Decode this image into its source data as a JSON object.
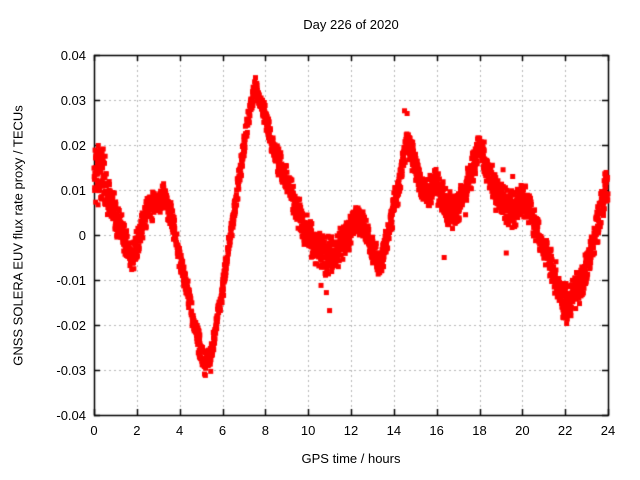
{
  "window": {
    "background": "#ffffff"
  },
  "chart_data": {
    "type": "scatter",
    "title": "Day 226 of 2020",
    "xlabel": "GPS time / hours",
    "ylabel": "GNSS SOLERA EUV flux rate proxy / TECUs",
    "xlim": [
      0,
      24
    ],
    "ylim": [
      -0.04,
      0.04
    ],
    "xtick_values": [
      0,
      2,
      4,
      6,
      8,
      10,
      12,
      14,
      16,
      18,
      20,
      22,
      24
    ],
    "xtick_labels": [
      "0",
      "2",
      "4",
      "6",
      "8",
      "10",
      "12",
      "14",
      "16",
      "18",
      "20",
      "22",
      "24"
    ],
    "ytick_values": [
      0.04,
      0.03,
      0.02,
      0.01,
      0,
      -0.01,
      -0.02,
      -0.03,
      -0.04
    ],
    "ytick_labels": [
      "0.04",
      "0.03",
      "0.02",
      "0.01",
      "0",
      "-0.01",
      "-0.02",
      "-0.03",
      "-0.04"
    ],
    "grid": {
      "show": true,
      "style": "dashed",
      "color": "#b8b8b8"
    },
    "axis_color": "#000000",
    "marker": {
      "shape": "square",
      "size": 5,
      "color": "#ff0000"
    },
    "legend": "none",
    "series": [
      {
        "name": "EUV flux rate proxy",
        "sampling_step_hours": 0.01,
        "keypoints": [
          [
            0.0,
            0.014
          ],
          [
            0.35,
            0.015
          ],
          [
            0.7,
            0.009
          ],
          [
            1.1,
            0.003
          ],
          [
            1.5,
            -0.002
          ],
          [
            1.85,
            -0.005
          ],
          [
            2.2,
            0.001
          ],
          [
            2.6,
            0.007
          ],
          [
            2.9,
            0.006
          ],
          [
            3.3,
            0.009
          ],
          [
            3.6,
            0.004
          ],
          [
            4.0,
            -0.005
          ],
          [
            4.4,
            -0.013
          ],
          [
            4.8,
            -0.022
          ],
          [
            5.15,
            -0.029
          ],
          [
            5.5,
            -0.026
          ],
          [
            6.0,
            -0.012
          ],
          [
            6.4,
            0.001
          ],
          [
            6.8,
            0.013
          ],
          [
            7.2,
            0.026
          ],
          [
            7.55,
            0.033
          ],
          [
            7.9,
            0.028
          ],
          [
            8.3,
            0.02
          ],
          [
            8.8,
            0.014
          ],
          [
            9.3,
            0.008
          ],
          [
            9.8,
            0.002
          ],
          [
            10.3,
            -0.002
          ],
          [
            10.9,
            -0.005
          ],
          [
            11.4,
            -0.003
          ],
          [
            11.9,
            0.0
          ],
          [
            12.25,
            0.004
          ],
          [
            12.6,
            0.002
          ],
          [
            13.0,
            -0.003
          ],
          [
            13.35,
            -0.007
          ],
          [
            13.7,
            -0.001
          ],
          [
            14.0,
            0.006
          ],
          [
            14.3,
            0.013
          ],
          [
            14.6,
            0.021
          ],
          [
            14.85,
            0.018
          ],
          [
            15.2,
            0.012
          ],
          [
            15.6,
            0.009
          ],
          [
            15.95,
            0.012
          ],
          [
            16.35,
            0.007
          ],
          [
            16.7,
            0.005
          ],
          [
            17.1,
            0.008
          ],
          [
            17.5,
            0.012
          ],
          [
            18.0,
            0.02
          ],
          [
            18.35,
            0.015
          ],
          [
            18.75,
            0.009
          ],
          [
            19.2,
            0.007
          ],
          [
            19.6,
            0.005
          ],
          [
            20.0,
            0.008
          ],
          [
            20.35,
            0.006
          ],
          [
            20.7,
            0.001
          ],
          [
            21.1,
            -0.004
          ],
          [
            21.5,
            -0.009
          ],
          [
            21.95,
            -0.015
          ],
          [
            22.35,
            -0.014
          ],
          [
            22.8,
            -0.01
          ],
          [
            23.2,
            -0.004
          ],
          [
            23.6,
            0.004
          ],
          [
            24.0,
            0.012
          ]
        ],
        "spread_keypoints": [
          [
            0.0,
            0.008
          ],
          [
            0.4,
            0.006
          ],
          [
            0.8,
            0.0045
          ],
          [
            1.5,
            0.0035
          ],
          [
            2.5,
            0.003
          ],
          [
            4.0,
            0.0028
          ],
          [
            5.2,
            0.0025
          ],
          [
            6.5,
            0.0028
          ],
          [
            7.6,
            0.0022
          ],
          [
            8.5,
            0.003
          ],
          [
            9.5,
            0.0035
          ],
          [
            10.7,
            0.0045
          ],
          [
            11.5,
            0.0035
          ],
          [
            12.3,
            0.003
          ],
          [
            13.3,
            0.003
          ],
          [
            14.6,
            0.0035
          ],
          [
            15.5,
            0.003
          ],
          [
            16.6,
            0.004
          ],
          [
            17.5,
            0.0035
          ],
          [
            18.0,
            0.003
          ],
          [
            19.0,
            0.0045
          ],
          [
            20.0,
            0.0035
          ],
          [
            21.0,
            0.003
          ],
          [
            22.0,
            0.0045
          ],
          [
            23.0,
            0.0035
          ],
          [
            23.8,
            0.0045
          ],
          [
            24.0,
            0.005
          ]
        ],
        "outliers": [
          [
            5.45,
            -0.0303
          ],
          [
            10.6,
            -0.0112
          ],
          [
            10.85,
            -0.0128
          ],
          [
            11.0,
            -0.0168
          ],
          [
            14.5,
            0.0276
          ],
          [
            14.62,
            0.027
          ],
          [
            16.35,
            -0.005
          ],
          [
            16.9,
            0.006
          ],
          [
            17.05,
            0.0038
          ],
          [
            17.35,
            0.0045
          ],
          [
            18.6,
            0.0155
          ],
          [
            19.1,
            0.0145
          ],
          [
            19.25,
            -0.004
          ],
          [
            19.55,
            0.013
          ]
        ]
      }
    ]
  }
}
